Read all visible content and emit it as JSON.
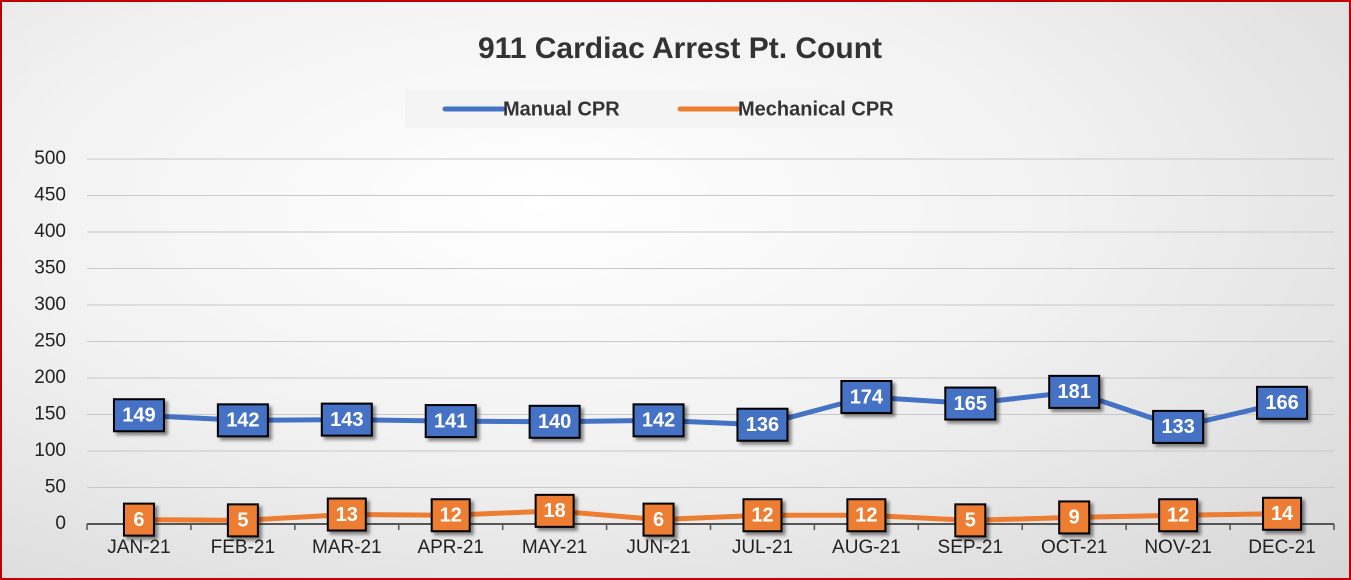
{
  "chart_data": {
    "type": "line",
    "title": "911 Cardiac Arrest Pt. Count",
    "categories": [
      "JAN-21",
      "FEB-21",
      "MAR-21",
      "APR-21",
      "MAY-21",
      "JUN-21",
      "JUL-21",
      "AUG-21",
      "SEP-21",
      "OCT-21",
      "NOV-21",
      "DEC-21"
    ],
    "series": [
      {
        "name": "Manual CPR",
        "color": "#4472c4",
        "values": [
          149,
          142,
          143,
          141,
          140,
          142,
          136,
          174,
          165,
          181,
          133,
          166
        ]
      },
      {
        "name": "Mechanical CPR",
        "color": "#ed7d31",
        "values": [
          6,
          5,
          13,
          12,
          18,
          6,
          12,
          12,
          5,
          9,
          12,
          14
        ]
      }
    ],
    "ylim": [
      0,
      500
    ],
    "yticks": [
      0,
      50,
      100,
      150,
      200,
      250,
      300,
      350,
      400,
      450,
      500
    ],
    "grid": true,
    "legend": "top"
  }
}
